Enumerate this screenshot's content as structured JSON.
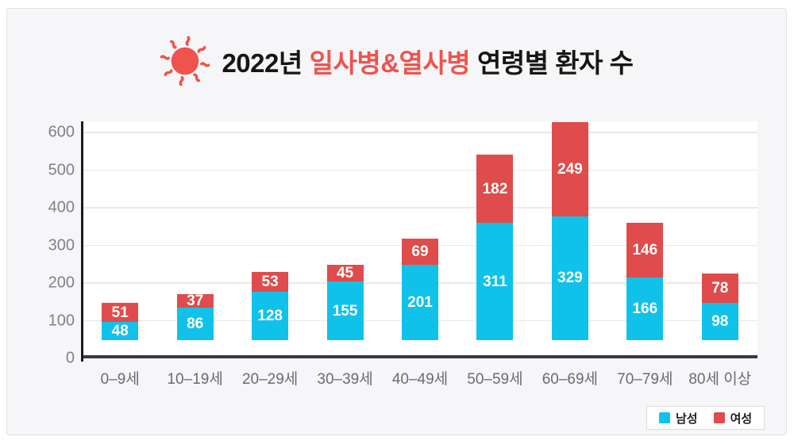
{
  "title": {
    "year_part": "2022년",
    "highlight_part": "일사병&열사병",
    "rest_part": "연령별 환자 수",
    "highlight_color": "#ef534d"
  },
  "colors": {
    "male": "#10c2ea",
    "female": "#e04b4b",
    "sun": "#ef534d",
    "card_bg": "#f6f6f8",
    "plot_bg": "#ffffff",
    "gridline": "#e9e9ec"
  },
  "legend": {
    "items": [
      {
        "label": "남성",
        "color": "#10c2ea"
      },
      {
        "label": "여성",
        "color": "#e04b4b"
      }
    ]
  },
  "chart_data": {
    "type": "bar",
    "stacked": true,
    "title": "2022년 일사병&열사병 연령별 환자 수",
    "categories": [
      "0–9세",
      "10–19세",
      "20–29세",
      "30–39세",
      "40–49세",
      "50–59세",
      "60–69세",
      "70–79세",
      "80세 이상"
    ],
    "series": [
      {
        "name": "남성",
        "color": "#10c2ea",
        "values": [
          48,
          86,
          128,
          155,
          201,
          311,
          329,
          166,
          98
        ]
      },
      {
        "name": "여성",
        "color": "#e04b4b",
        "values": [
          51,
          37,
          53,
          45,
          69,
          182,
          249,
          146,
          78
        ]
      }
    ],
    "xlabel": "",
    "ylabel": "",
    "ylim": [
      0,
      600
    ],
    "yticks": [
      0,
      100,
      200,
      300,
      400,
      500,
      600
    ],
    "grid": true,
    "legend_position": "bottom-right",
    "value_labels": "inside-segments"
  }
}
